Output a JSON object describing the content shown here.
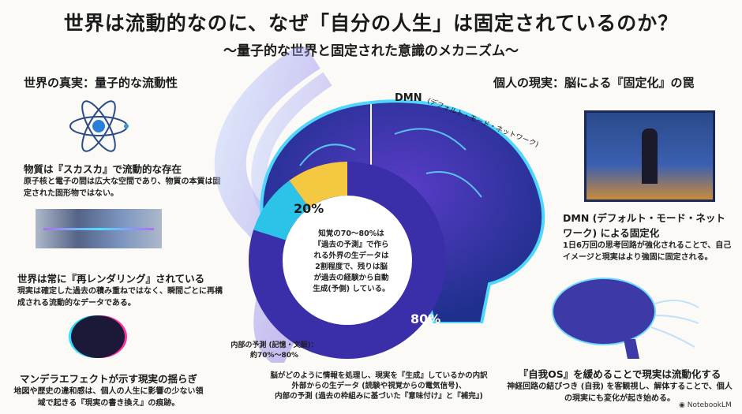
{
  "title": "世界は流動的なのに、なぜ「自分の人生」は固定されているのか？",
  "subtitle": "〜量子的な世界と固定された意識のメカニズム〜",
  "left": {
    "heading": "世界の真実：量子的な流動性",
    "items": [
      {
        "title": "物質は『スカスカ』で流動的な存在",
        "body": "原子核と電子の間は広大な空間であり、物質の本質は固定された固形物ではない。",
        "icon": "atom-icon"
      },
      {
        "title": "世界は常に『再レンダリング』されている",
        "body": "現実は確定した過去の積み重ねではなく、瞬間ごとに再構成される流動的なデータである。",
        "icon": "screens-icon"
      },
      {
        "title": "マンデラエフェクトが示す現実の揺らぎ",
        "body": "地図や歴史の違和感は、個人の人生に影響の少ない領域で起きる『現実の書き換え』の痕跡。",
        "icon": "glitch-icon"
      }
    ]
  },
  "right": {
    "heading": "個人の現実：脳による『固定化』の罠",
    "items": [
      {
        "title": "DMN (デフォルト・モード・ネットワーク) による固定化",
        "body": "1日6万回の思考回路が強化されることで、自己イメージと現実はより強固に固定される。",
        "icon": "room-icon"
      },
      {
        "title": "『自我OS』を緩めることで現実は流動化する",
        "body": "神経回路の結びつき (自我) を客観視し、解体することで、個人の現実にも変化が起き始める。",
        "icon": "brain-icon"
      }
    ]
  },
  "center": {
    "dmn_label": "DMN",
    "dmn_arc": "(デフォルト・モード・ネットワーク)",
    "donut_center": "知覚の70〜80%は『過去の予測』で作られる外界の生データは2割程度で、残りは脳が過去の経験から自動生成(予側) している。",
    "internal_label": "内部の予測 (記憶・文脈)：",
    "internal_value": "約70%〜80%",
    "caption": [
      "脳がどのように情報を処理し、現実を『生成』しているかの内訳",
      "外部からの生データ (読験や視覚からの電気信号)、",
      "内部の予測 (過去の枠組みに基づいた『意味付け』と『補完』)"
    ]
  },
  "donut": {
    "type": "pie",
    "labels": [
      "20%",
      "80%"
    ],
    "values": [
      20,
      80
    ],
    "colors": [
      "#f5c842",
      "#2bc4e8",
      "#3a2fa8"
    ]
  },
  "footer": {
    "brand": "NotebookLM"
  }
}
